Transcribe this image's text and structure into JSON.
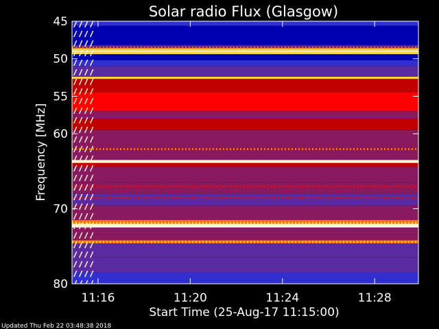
{
  "chart_data": {
    "type": "heatmap",
    "title": "Solar radio Flux (Glasgow)",
    "xlabel": "Start Time (25-Aug-17 11:15:00)",
    "ylabel": "Frequency [MHz]",
    "ylim": [
      45,
      80
    ],
    "y_inverted": true,
    "y_ticks": [
      {
        "value": 45,
        "label": "45"
      },
      {
        "value": 50,
        "label": "50"
      },
      {
        "value": 55,
        "label": "55"
      },
      {
        "value": 60,
        "label": "60"
      },
      {
        "value": 70,
        "label": "70"
      },
      {
        "value": 80,
        "label": "80"
      }
    ],
    "x_ticks": [
      {
        "minutes": 1.0,
        "label": "11:16"
      },
      {
        "minutes": 5.0,
        "label": "11:20"
      },
      {
        "minutes": 9.0,
        "label": "11:24"
      },
      {
        "minutes": 13.0,
        "label": "11:28"
      }
    ],
    "xlim_minutes": [
      -0.13,
      14.9
    ],
    "grid": false,
    "colormap": [
      "#000020",
      "#0000b0",
      "#3030d0",
      "#5a2aa0",
      "#8a1a60",
      "#c00000",
      "#ff0000",
      "#ff7000",
      "#ffd040",
      "#fff8d0"
    ],
    "bands": [
      {
        "from": 45.0,
        "to": 45.6,
        "level": 0.25
      },
      {
        "from": 45.6,
        "to": 48.2,
        "level": 0.15
      },
      {
        "from": 48.2,
        "to": 48.6,
        "level": 0.3
      },
      {
        "from": 48.6,
        "to": 48.9,
        "level": 0.85
      },
      {
        "from": 48.9,
        "to": 49.1,
        "level": 0.98
      },
      {
        "from": 49.1,
        "to": 49.4,
        "level": 0.85
      },
      {
        "from": 49.4,
        "to": 50.2,
        "level": 0.12
      },
      {
        "from": 50.2,
        "to": 51.0,
        "level": 0.2
      },
      {
        "from": 51.0,
        "to": 52.4,
        "level": 0.35
      },
      {
        "from": 52.4,
        "to": 52.7,
        "level": 0.9
      },
      {
        "from": 52.7,
        "to": 53.0,
        "level": 0.6
      },
      {
        "from": 53.0,
        "to": 54.5,
        "level": 0.5
      },
      {
        "from": 54.5,
        "to": 57.0,
        "level": 0.62
      },
      {
        "from": 57.0,
        "to": 58.0,
        "level": 0.48
      },
      {
        "from": 58.0,
        "to": 59.5,
        "level": 0.6
      },
      {
        "from": 59.5,
        "to": 61.5,
        "level": 0.45
      },
      {
        "from": 61.5,
        "to": 63.5,
        "level": 0.42
      },
      {
        "from": 63.5,
        "to": 63.9,
        "level": 0.95
      },
      {
        "from": 63.9,
        "to": 64.4,
        "level": 0.5
      },
      {
        "from": 64.4,
        "to": 66.5,
        "level": 0.4
      },
      {
        "from": 66.5,
        "to": 68.0,
        "level": 0.45
      },
      {
        "from": 68.0,
        "to": 69.5,
        "level": 0.35
      },
      {
        "from": 69.5,
        "to": 71.5,
        "level": 0.4
      },
      {
        "from": 71.5,
        "to": 72.0,
        "level": 0.8
      },
      {
        "from": 72.0,
        "to": 72.5,
        "level": 0.97
      },
      {
        "from": 72.5,
        "to": 73.5,
        "level": 0.45
      },
      {
        "from": 73.5,
        "to": 74.2,
        "level": 0.42
      },
      {
        "from": 74.2,
        "to": 74.6,
        "level": 0.75
      },
      {
        "from": 74.6,
        "to": 76.5,
        "level": 0.33
      },
      {
        "from": 76.5,
        "to": 78.5,
        "level": 0.28
      },
      {
        "from": 78.5,
        "to": 80.0,
        "level": 0.25
      }
    ],
    "striped_lines": [
      {
        "freq": 48.5,
        "level": 0.8
      },
      {
        "freq": 62.0,
        "level": 0.75
      },
      {
        "freq": 67.0,
        "level": 0.7
      },
      {
        "freq": 68.5,
        "level": 0.7
      },
      {
        "freq": 71.8,
        "level": 0.85
      },
      {
        "freq": 74.4,
        "level": 0.85
      }
    ],
    "burst": {
      "from_minutes": -0.05,
      "to_minutes": 0.7,
      "level": 0.95
    },
    "footer": "Updated Thu Feb 22 03:48:38 2018"
  }
}
